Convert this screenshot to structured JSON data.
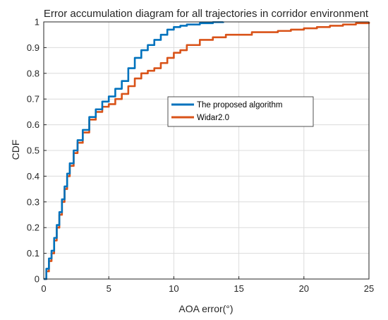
{
  "chart_data": {
    "type": "line",
    "title": "Error accumulation diagram for all trajectories in corridor environment",
    "xlabel": "AOA error(°)",
    "ylabel": "CDF",
    "xlim": [
      0,
      25
    ],
    "ylim": [
      0,
      1
    ],
    "x_ticks": [
      0,
      5,
      10,
      15,
      20,
      25
    ],
    "x_tick_labels": [
      "0",
      "5",
      "10",
      "15",
      "20",
      "25"
    ],
    "y_ticks": [
      0,
      0.1,
      0.2,
      0.3,
      0.4,
      0.5,
      0.6,
      0.7,
      0.8,
      0.9,
      1
    ],
    "y_tick_labels": [
      "0",
      "0.1",
      "0.2",
      "0.3",
      "0.4",
      "0.5",
      "0.6",
      "0.7",
      "0.8",
      "0.9",
      "1"
    ],
    "grid": true,
    "legend_position": "center-right",
    "series": [
      {
        "name": "The proposed algorithm",
        "color": "#0072BD",
        "x": [
          0,
          0.2,
          0.4,
          0.6,
          0.8,
          1.0,
          1.2,
          1.4,
          1.6,
          1.8,
          2.0,
          2.3,
          2.6,
          3.0,
          3.5,
          4.0,
          4.5,
          5.0,
          5.5,
          6.0,
          6.5,
          7.0,
          7.5,
          8.0,
          8.5,
          9.0,
          9.5,
          10.0,
          10.5,
          11.0,
          12.0,
          13.0,
          13.8
        ],
        "y": [
          0,
          0.04,
          0.08,
          0.11,
          0.16,
          0.21,
          0.26,
          0.31,
          0.36,
          0.41,
          0.45,
          0.5,
          0.54,
          0.58,
          0.63,
          0.66,
          0.69,
          0.71,
          0.74,
          0.77,
          0.82,
          0.86,
          0.89,
          0.91,
          0.93,
          0.95,
          0.97,
          0.98,
          0.985,
          0.99,
          0.995,
          0.999,
          1.0
        ]
      },
      {
        "name": "Widar2.0",
        "color": "#D95319",
        "x": [
          0,
          0.2,
          0.4,
          0.6,
          0.8,
          1.0,
          1.2,
          1.4,
          1.6,
          1.8,
          2.0,
          2.3,
          2.6,
          3.0,
          3.5,
          4.0,
          4.5,
          5.0,
          5.5,
          6.0,
          6.5,
          7.0,
          7.5,
          8.0,
          8.5,
          9.0,
          9.5,
          10.0,
          10.5,
          11.0,
          12.0,
          13.0,
          14.0,
          15.0,
          16.0,
          17.0,
          18.0,
          19.0,
          20.0,
          21.0,
          22.0,
          23.0,
          24.0,
          25.0
        ],
        "y": [
          0,
          0.03,
          0.07,
          0.1,
          0.15,
          0.2,
          0.25,
          0.3,
          0.35,
          0.4,
          0.44,
          0.49,
          0.53,
          0.57,
          0.62,
          0.65,
          0.67,
          0.68,
          0.7,
          0.72,
          0.75,
          0.78,
          0.8,
          0.81,
          0.82,
          0.84,
          0.86,
          0.88,
          0.89,
          0.91,
          0.93,
          0.94,
          0.95,
          0.95,
          0.96,
          0.96,
          0.965,
          0.97,
          0.975,
          0.98,
          0.985,
          0.99,
          0.995,
          1.0
        ]
      }
    ]
  }
}
